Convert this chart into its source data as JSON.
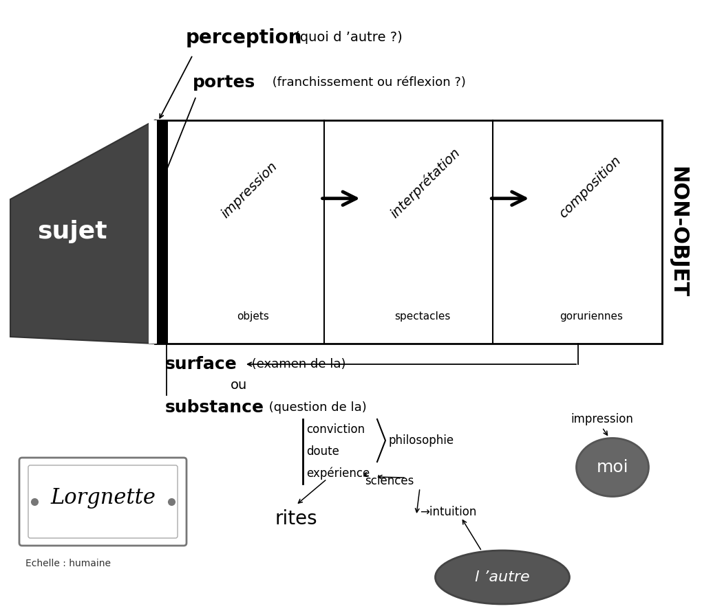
{
  "bg_color": "#ffffff",
  "title": "Lorgnette",
  "subtitle": "Echelle : humaine",
  "sujet_label": "sujet",
  "non_objet_label": "NON-OBJET",
  "perception_bold": "perception",
  "perception_rest": " (quoi d ’autre ?)",
  "portes_bold": "portes",
  "portes_rest": " (franchissement ou réflexion ?)",
  "surface_bold": "surface",
  "surface_rest": " (examen de la)",
  "ou_text": "ou",
  "substance_bold": "substance",
  "substance_rest": " (question de la)",
  "impression_label": "impression",
  "interpretation_label": "interprétation",
  "composition_label": "composition",
  "objets_label": "objets",
  "spectacles_label": "spectacles",
  "goruriennes_label": "goruriennes",
  "conviction_label": "conviction",
  "doute_label": "doute",
  "experience_label": "expérience",
  "philosophie_label": "philosophie",
  "sciences_label": "sciences",
  "rites_label": "rites",
  "intuition_label": "→intuition",
  "impression2_label": "impression",
  "moi_label": "moi",
  "lautre_label": "l ’autre"
}
